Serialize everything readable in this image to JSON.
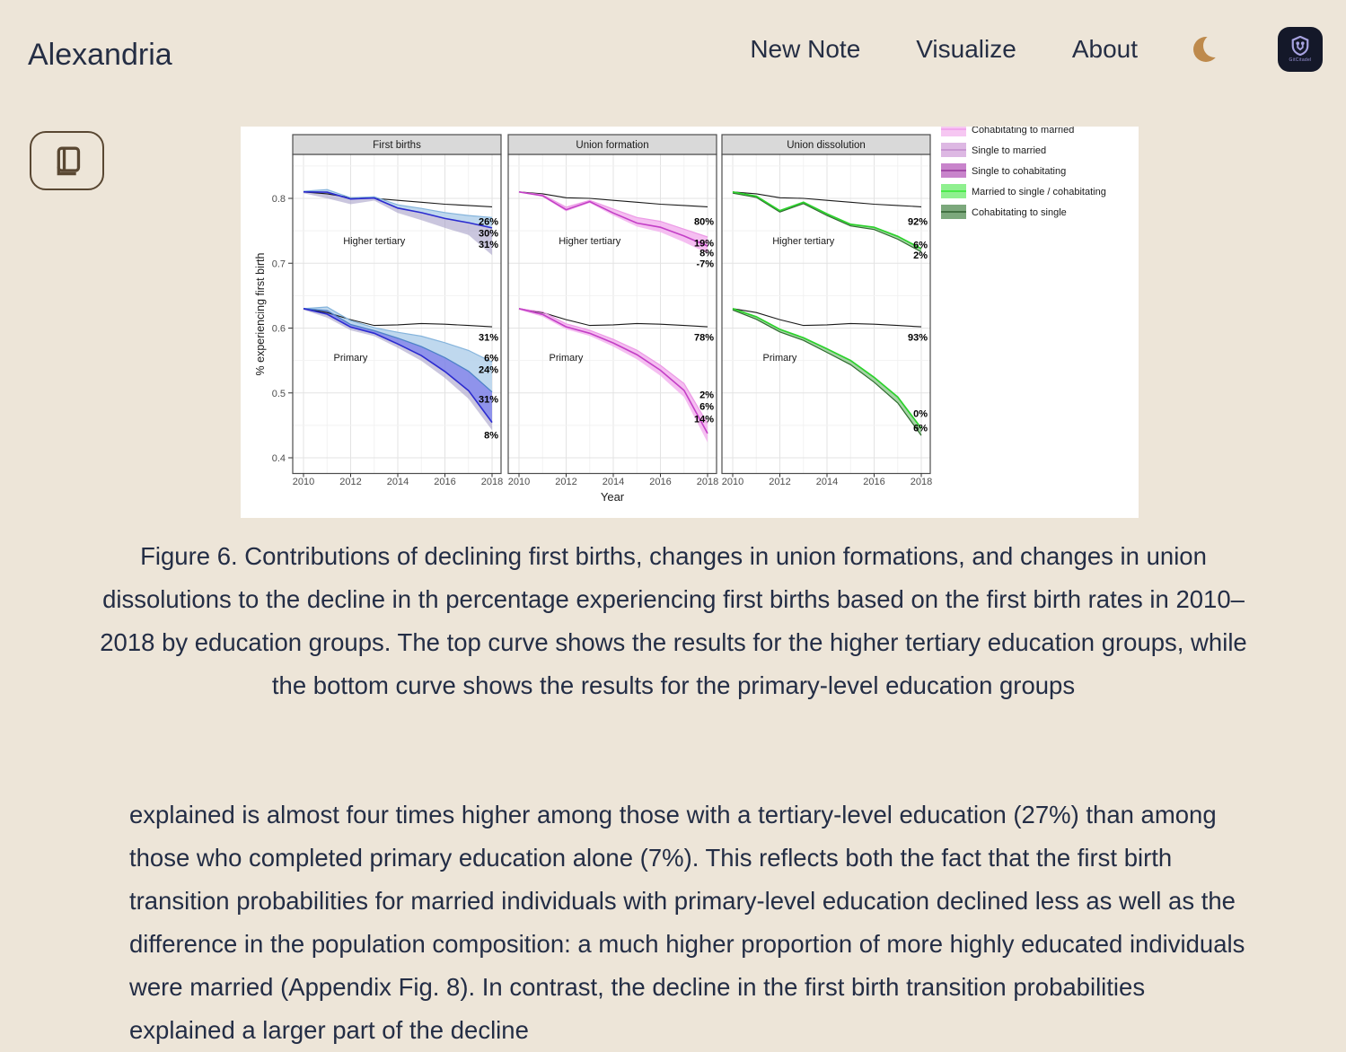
{
  "header": {
    "brand": "Alexandria",
    "nav": [
      {
        "label": "New Note"
      },
      {
        "label": "Visualize"
      },
      {
        "label": "About"
      }
    ],
    "theme_toggle_icon": "moon-icon",
    "badge": {
      "label": "GitCitadel",
      "logo_icon": "gitcitadel-shield-logo",
      "bg_color": "#141829",
      "fg_color": "#A7A2E0"
    }
  },
  "toolbar": {
    "reader_button_icon": "book-icon"
  },
  "figure": {
    "caption": "Figure 6. Contributions of declining first births, changes in union formations, and changes in union dissolutions to the decline in th percentage experiencing first births based on the first birth rates in 2010–2018 by education groups. The top curve shows the results for the higher tertiary education groups, while the bottom curve shows the results for the primary-level education groups"
  },
  "article": {
    "paragraph": "explained is almost four times higher among those with a tertiary-level education (27%) than among those who completed primary education alone (7%). This reflects both the fact that the first birth transition probabilities for married individuals with primary-level education declined less as well as the difference in the population composition: a much higher proportion of more highly educated individuals were married (Appendix Fig. 8). In contrast, the decline in the first birth transition probabilities explained a larger part of the decline"
  },
  "chart_data": {
    "type": "line",
    "x": [
      2010,
      2011,
      2012,
      2013,
      2014,
      2015,
      2016,
      2017,
      2018
    ],
    "xticks": [
      2010,
      2012,
      2014,
      2016,
      2018
    ],
    "yticks": [
      0.4,
      0.5,
      0.6,
      0.7,
      0.8
    ],
    "xlabel": "Year",
    "ylabel": "% experiencing first birth",
    "ylim": [
      0.376,
      0.868
    ],
    "grid": true,
    "legend_position": "top-right-outside",
    "legend": [
      {
        "label": "Cohabitating to married",
        "fill": "#F6C7F2",
        "line": "#EF9BE9"
      },
      {
        "label": "Single to married",
        "fill": "#DDB8E3",
        "line": "#C08BCB"
      },
      {
        "label": "Single to cohabitating",
        "fill": "#C884CB",
        "line": "#96389B"
      },
      {
        "label": "Married to single / cohabitating",
        "fill": "#8FF08F",
        "line": "#35E835"
      },
      {
        "label": "Cohabitating to single",
        "fill": "#7CA87C",
        "line": "#2E5F2E"
      }
    ],
    "panels": [
      {
        "title": "First births",
        "groups": [
          {
            "name": "Higher tertiary",
            "label_pos": {
              "year": 2013,
              "value": 0.735
            },
            "ref": [
              0.81,
              0.807,
              0.801,
              0.8,
              0.797,
              0.794,
              0.791,
              0.789,
              0.787
            ],
            "series": {
              "upper": [
                0.811,
                0.8135,
                0.801,
                0.8025,
                0.79,
                0.7845,
                0.778,
                0.7735,
                0.7705
              ],
              "blue": [
                0.81,
                0.8095,
                0.799,
                0.8005,
                0.785,
                0.778,
                0.769,
                0.7625,
                0.7545
              ],
              "lower": [
                0.808,
                0.8,
                0.791,
                0.7965,
                0.7775,
                0.7665,
                0.7545,
                0.7435,
                0.7125
              ]
            },
            "bands": [
              {
                "upper": "upper",
                "lower": "blue",
                "fill": "#B8D4EC",
                "opacity": 0.9
              },
              {
                "upper": "blue",
                "lower": "lower",
                "fill": "#A9A3C9",
                "opacity": 0.62
              }
            ],
            "lines": [
              {
                "key": "upper",
                "color": "#85B4DC",
                "width": 1.2
              },
              {
                "key": "blue",
                "color": "#2B2BD0",
                "width": 1.6
              }
            ],
            "annotations": [
              {
                "text": "26%",
                "value": 0.7645
              },
              {
                "text": "30%",
                "value": 0.7465
              },
              {
                "text": "31%",
                "value": 0.7295
              }
            ]
          },
          {
            "name": "Primary",
            "label_pos": {
              "year": 2012,
              "value": 0.555
            },
            "ref": [
              0.63,
              0.624,
              0.613,
              0.604,
              0.605,
              0.607,
              0.606,
              0.604,
              0.602
            ],
            "series": {
              "upper": [
                0.63,
                0.6325,
                0.6115,
                0.6005,
                0.5935,
                0.5875,
                0.5775,
                0.5655,
                0.5475
              ],
              "mid": [
                0.63,
                0.627,
                0.6055,
                0.596,
                0.5845,
                0.5715,
                0.5545,
                0.5335,
                0.5015
              ],
              "blue": [
                0.63,
                0.6215,
                0.6015,
                0.592,
                0.5755,
                0.5575,
                0.533,
                0.5035,
                0.4545
              ],
              "lower": [
                0.628,
                0.616,
                0.5965,
                0.5875,
                0.5695,
                0.5495,
                0.523,
                0.491,
                0.4425
              ]
            },
            "bands": [
              {
                "upper": "upper",
                "lower": "mid",
                "fill": "#B8D4EC",
                "opacity": 0.9
              },
              {
                "upper": "mid",
                "lower": "blue",
                "fill": "#7B80E8",
                "opacity": 0.85
              },
              {
                "upper": "blue",
                "lower": "lower",
                "fill": "#A9A3C9",
                "opacity": 0.62
              }
            ],
            "lines": [
              {
                "key": "upper",
                "color": "#85B4DC",
                "width": 1.2
              },
              {
                "key": "mid",
                "color": "#4E82C8",
                "width": 1.3
              },
              {
                "key": "blue",
                "color": "#2B2BD0",
                "width": 1.6
              }
            ],
            "annotations": [
              {
                "text": "31%",
                "value": 0.5865
              },
              {
                "text": "6%",
                "value": 0.5545
              },
              {
                "text": "24%",
                "value": 0.5365
              },
              {
                "text": "31%",
                "value": 0.4905
              },
              {
                "text": "8%",
                "value": 0.4355
              }
            ]
          }
        ]
      },
      {
        "title": "Union formation",
        "groups": [
          {
            "name": "Higher tertiary",
            "label_pos": {
              "year": 2013,
              "value": 0.735
            },
            "ref": [
              0.81,
              0.807,
              0.801,
              0.8,
              0.797,
              0.794,
              0.791,
              0.789,
              0.787
            ],
            "series": {
              "upper": [
                0.81,
                0.8055,
                0.7865,
                0.797,
                0.7835,
                0.7705,
                0.7645,
                0.7525,
                0.7405
              ],
              "main": [
                0.81,
                0.804,
                0.7825,
                0.795,
                0.7775,
                0.762,
                0.7555,
                0.742,
                0.7265
              ],
              "lower": [
                0.81,
                0.8025,
                0.78,
                0.793,
                0.7735,
                0.7565,
                0.748,
                0.7325,
                0.7155
              ]
            },
            "bands": [
              {
                "upper": "upper",
                "lower": "lower",
                "fill": "#F3AEED",
                "opacity": 0.8
              }
            ],
            "lines": [
              {
                "key": "upper",
                "color": "#EC9AE6",
                "width": 1.2
              },
              {
                "key": "main",
                "color": "#C33FC6",
                "width": 1.6
              }
            ],
            "annotations": [
              {
                "text": "80%",
                "value": 0.7645
              },
              {
                "text": "19%",
                "value": 0.7315
              },
              {
                "text": "8%",
                "value": 0.7165
              },
              {
                "text": "-7%",
                "value": 0.7
              }
            ]
          },
          {
            "name": "Primary",
            "label_pos": {
              "year": 2012,
              "value": 0.555
            },
            "ref": [
              0.63,
              0.624,
              0.613,
              0.604,
              0.605,
              0.607,
              0.606,
              0.604,
              0.602
            ],
            "series": {
              "upper": [
                0.63,
                0.625,
                0.6065,
                0.5965,
                0.5825,
                0.566,
                0.5425,
                0.5145,
                0.4525
              ],
              "main": [
                0.63,
                0.621,
                0.602,
                0.592,
                0.577,
                0.559,
                0.535,
                0.504,
                0.4375
              ],
              "lower": [
                0.628,
                0.6175,
                0.598,
                0.588,
                0.5715,
                0.552,
                0.5265,
                0.4935,
                0.4235
              ]
            },
            "bands": [
              {
                "upper": "upper",
                "lower": "lower",
                "fill": "#F3AEED",
                "opacity": 0.8
              }
            ],
            "lines": [
              {
                "key": "upper",
                "color": "#EC9AE6",
                "width": 1.2
              },
              {
                "key": "main",
                "color": "#C33FC6",
                "width": 1.6
              }
            ],
            "annotations": [
              {
                "text": "78%",
                "value": 0.5865
              },
              {
                "text": "2%",
                "value": 0.4975
              },
              {
                "text": "6%",
                "value": 0.4795
              },
              {
                "text": "14%",
                "value": 0.46
              }
            ]
          }
        ]
      },
      {
        "title": "Union dissolution",
        "groups": [
          {
            "name": "Higher tertiary",
            "label_pos": {
              "year": 2013,
              "value": 0.735
            },
            "ref": [
              0.81,
              0.807,
              0.801,
              0.8,
              0.797,
              0.794,
              0.791,
              0.789,
              0.787
            ],
            "series": {
              "green": [
                0.81,
                0.8035,
                0.781,
                0.794,
                0.776,
                0.76,
                0.7555,
                0.7415,
                0.7225
              ],
              "dark": [
                0.808,
                0.8015,
                0.779,
                0.792,
                0.7735,
                0.7575,
                0.752,
                0.737,
                0.7175
              ]
            },
            "bands": [
              {
                "upper": "green",
                "lower": "dark",
                "fill": "#5FB35F",
                "opacity": 0.55
              }
            ],
            "lines": [
              {
                "key": "dark",
                "color": "#2E6B2E",
                "width": 1.2
              },
              {
                "key": "green",
                "color": "#2BD22B",
                "width": 1.7
              }
            ],
            "annotations": [
              {
                "text": "92%",
                "value": 0.7645
              },
              {
                "text": "6%",
                "value": 0.7285
              },
              {
                "text": "2%",
                "value": 0.7125
              }
            ]
          },
          {
            "name": "Primary",
            "label_pos": {
              "year": 2012,
              "value": 0.555
            },
            "ref": [
              0.63,
              0.624,
              0.613,
              0.604,
              0.605,
              0.607,
              0.606,
              0.604,
              0.602
            ],
            "series": {
              "green": [
                0.63,
                0.6175,
                0.598,
                0.585,
                0.568,
                0.55,
                0.524,
                0.4935,
                0.4455
              ],
              "dark": [
                0.628,
                0.6135,
                0.594,
                0.581,
                0.5625,
                0.5435,
                0.5165,
                0.4845,
                0.4345
              ]
            },
            "bands": [
              {
                "upper": "green",
                "lower": "dark",
                "fill": "#5FB35F",
                "opacity": 0.55
              }
            ],
            "lines": [
              {
                "key": "dark",
                "color": "#2E6B2E",
                "width": 1.2
              },
              {
                "key": "green",
                "color": "#2BD22B",
                "width": 1.7
              }
            ],
            "annotations": [
              {
                "text": "93%",
                "value": 0.5865
              },
              {
                "text": "0%",
                "value": 0.4685
              },
              {
                "text": "6%",
                "value": 0.4465
              }
            ]
          }
        ]
      }
    ]
  }
}
